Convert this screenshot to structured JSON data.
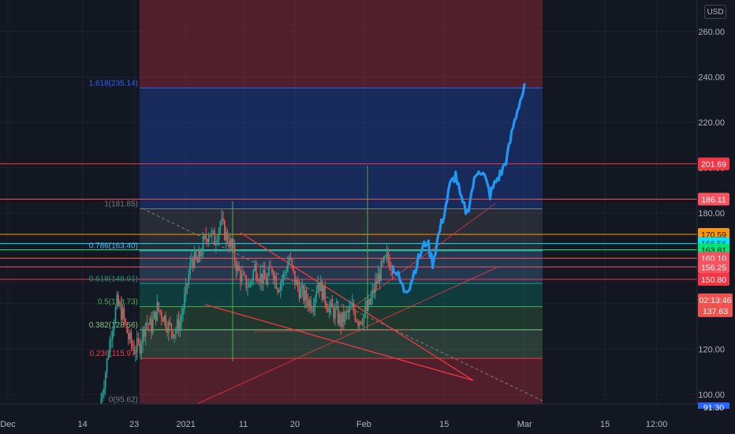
{
  "currency": "USD",
  "colors": {
    "background": "#131722",
    "grid": "#1e222d",
    "up": "#26a69a",
    "down": "#ef5350",
    "projection": "#2196f3",
    "fib_border": "#2962ff",
    "resistance": "#f23645"
  },
  "chart_data": {
    "type": "candlestick",
    "title": "",
    "currency": "USD",
    "ylim": [
      86,
      270
    ],
    "y_ticks": [
      100,
      120,
      140,
      160,
      180,
      200,
      220,
      240,
      260
    ],
    "y_tick_labels": [
      "100.00",
      "120.00",
      "140.00",
      "160.00",
      "180.00",
      "200.00",
      "220.00",
      "240.00",
      "260.00"
    ],
    "x_ticks": [
      {
        "label": "Dec",
        "day": 0
      },
      {
        "label": "14",
        "day": 13
      },
      {
        "label": "23",
        "day": 22
      },
      {
        "label": "2021",
        "day": 31
      },
      {
        "label": "11",
        "day": 41
      },
      {
        "label": "20",
        "day": 50
      },
      {
        "label": "Feb",
        "day": 62
      },
      {
        "label": "15",
        "day": 76
      },
      {
        "label": "Mar",
        "day": 90
      },
      {
        "label": "15",
        "day": 104
      },
      {
        "label": "12:00",
        "day": 113
      }
    ],
    "price_series": [
      [
        16,
        95
      ],
      [
        17,
        110
      ],
      [
        18,
        128
      ],
      [
        19,
        140
      ],
      [
        20,
        135
      ],
      [
        21,
        125
      ],
      [
        22,
        120
      ],
      [
        23,
        122
      ],
      [
        24,
        132
      ],
      [
        25,
        130
      ],
      [
        26,
        138
      ],
      [
        27,
        135
      ],
      [
        28,
        130
      ],
      [
        29,
        128
      ],
      [
        30,
        132
      ],
      [
        31,
        145
      ],
      [
        32,
        160
      ],
      [
        33,
        158
      ],
      [
        34,
        166
      ],
      [
        35,
        172
      ],
      [
        36,
        168
      ],
      [
        37,
        176
      ],
      [
        38,
        170
      ],
      [
        39,
        165
      ],
      [
        40,
        155
      ],
      [
        41,
        150
      ],
      [
        42,
        148
      ],
      [
        43,
        156
      ],
      [
        44,
        152
      ],
      [
        45,
        150
      ],
      [
        46,
        156
      ],
      [
        47,
        148
      ],
      [
        48,
        152
      ],
      [
        49,
        160
      ],
      [
        50,
        150
      ],
      [
        51,
        145
      ],
      [
        52,
        142
      ],
      [
        53,
        140
      ],
      [
        54,
        150
      ],
      [
        55,
        144
      ],
      [
        56,
        138
      ],
      [
        57,
        136
      ],
      [
        58,
        132
      ],
      [
        59,
        135
      ],
      [
        60,
        138
      ],
      [
        61,
        133
      ],
      [
        62,
        135
      ],
      [
        63,
        140
      ],
      [
        64,
        148
      ],
      [
        65,
        155
      ],
      [
        66,
        160
      ],
      [
        67,
        157
      ]
    ],
    "projection": [
      [
        67,
        157
      ],
      [
        68,
        152
      ],
      [
        69,
        146
      ],
      [
        70,
        148
      ],
      [
        71,
        156
      ],
      [
        72,
        163
      ],
      [
        73,
        168
      ],
      [
        74,
        158
      ],
      [
        75,
        170
      ],
      [
        76,
        180
      ],
      [
        77,
        192
      ],
      [
        78,
        197
      ],
      [
        79,
        185
      ],
      [
        80,
        180
      ],
      [
        81,
        192
      ],
      [
        82,
        200
      ],
      [
        83,
        196
      ],
      [
        84,
        188
      ],
      [
        85,
        194
      ],
      [
        86,
        198
      ],
      [
        87,
        205
      ],
      [
        88,
        218
      ],
      [
        89,
        228
      ],
      [
        90,
        235
      ]
    ],
    "fib_levels": [
      {
        "ratio": 0,
        "price": 95.62,
        "label": "0(95.62)",
        "color": "#787b86"
      },
      {
        "ratio": 0.236,
        "price": 115.97,
        "label": "0.236(115.97)",
        "color": "#f23645"
      },
      {
        "ratio": 0.382,
        "price": 128.56,
        "label": "0.382(128.56)",
        "color": "#81c784"
      },
      {
        "ratio": 0.5,
        "price": 138.73,
        "label": "0.5(138.73)",
        "color": "#4caf50"
      },
      {
        "ratio": 0.618,
        "price": 148.91,
        "label": "0.618(148.91)",
        "color": "#089981"
      },
      {
        "ratio": 0.786,
        "price": 163.4,
        "label": "0.786(163.40)",
        "color": "#64b5f6"
      },
      {
        "ratio": 1,
        "price": 181.85,
        "label": "1(181.85)",
        "color": "#787b86"
      },
      {
        "ratio": 1.618,
        "price": 235.14,
        "label": "1.618(235.14)",
        "color": "#2962ff"
      }
    ],
    "horizontal_levels": [
      {
        "price": 201.69,
        "label": "201.69",
        "color": "#f23645"
      },
      {
        "price": 186.11,
        "label": "186.11",
        "color": "#f7525f"
      },
      {
        "price": 170.59,
        "label": "170.59",
        "color": "#ff9800"
      },
      {
        "price": 166.56,
        "label": "166.56",
        "color": "#00e5ff"
      },
      {
        "price": 163.81,
        "label": "163.81",
        "color": "#00e676"
      },
      {
        "price": 160.1,
        "label": "160.10",
        "color": "#f7525f"
      },
      {
        "price": 156.25,
        "label": "156.25",
        "color": "#f7525f"
      },
      {
        "price": 150.8,
        "label": "150.80",
        "color": "#f23645"
      }
    ],
    "last_price": {
      "price": 137.63,
      "label": "137.63",
      "countdown": "02:13:46"
    },
    "bottom_badge": {
      "price": 91.3,
      "label": "91.30"
    }
  }
}
